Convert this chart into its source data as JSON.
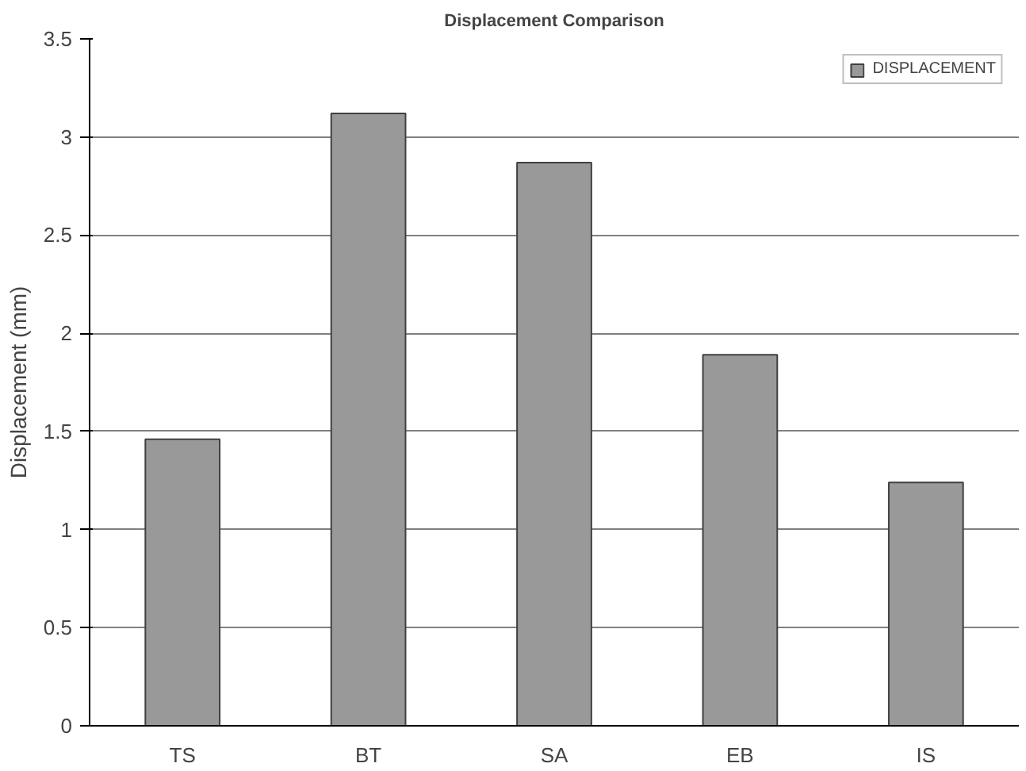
{
  "chart_data": {
    "type": "bar",
    "title": "Displacement Comparison",
    "ylabel": "Displacement (mm)",
    "categories": [
      "TS",
      "BT",
      "SA",
      "EB",
      "IS"
    ],
    "series": [
      {
        "name": "DISPLACEMENT",
        "color": "#999999",
        "values": [
          1.46,
          3.12,
          2.87,
          1.89,
          1.24
        ]
      }
    ],
    "ylim": [
      0,
      3.5
    ],
    "yticks": [
      0,
      0.5,
      1,
      1.5,
      2,
      2.5,
      3,
      3.5
    ],
    "grid": "y",
    "legend": "top right"
  }
}
